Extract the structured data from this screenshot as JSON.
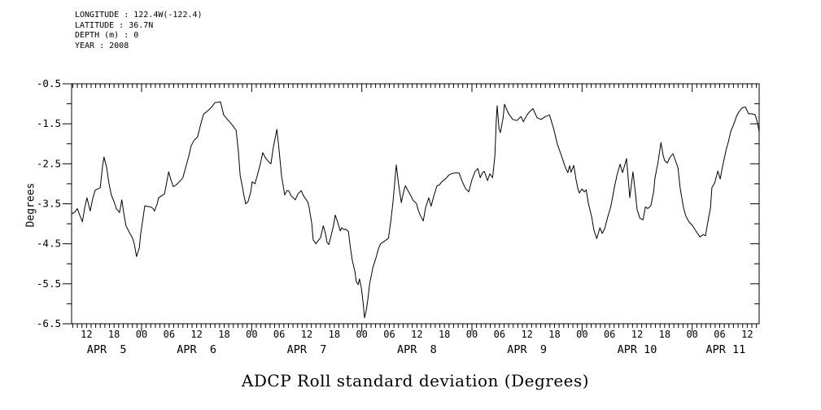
{
  "meta": {
    "longitude_line": "LONGITUDE : 122.4W(-122.4)",
    "latitude_line": "LATITUDE : 36.7N",
    "depth_line": "DEPTH (m) : 0",
    "year_line": "YEAR : 2008"
  },
  "chart_data": {
    "type": "line",
    "title": "ADCP Roll standard deviation (Degrees)",
    "ylabel": "Degrees",
    "x_unit": "hours since 2008-04-05 00:00",
    "xlim": [
      8.75,
      158.6
    ],
    "ylim": [
      -6.5,
      -0.5
    ],
    "grid": false,
    "line_color": "#000000",
    "background": "#ffffff",
    "y_ticks": [
      {
        "v": -0.5,
        "label": "-0.5"
      },
      {
        "v": -1.5,
        "label": "-1.5"
      },
      {
        "v": -2.5,
        "label": "-2.5"
      },
      {
        "v": -3.5,
        "label": "-3.5"
      },
      {
        "v": -4.5,
        "label": "-4.5"
      },
      {
        "v": -5.5,
        "label": "-5.5"
      },
      {
        "v": -6.5,
        "label": "-6.5"
      }
    ],
    "y_minor_ticks": [
      -1.0,
      -2.0,
      -3.0,
      -4.0,
      -5.0,
      -6.0
    ],
    "x_hour_tick_step": 1,
    "x_midnight_ticks": [
      24,
      48,
      72,
      96,
      120,
      144
    ],
    "x_labels": [
      {
        "t": 12,
        "text": "12"
      },
      {
        "t": 18,
        "text": "18"
      },
      {
        "t": 24,
        "text": "00"
      },
      {
        "t": 30,
        "text": "06"
      },
      {
        "t": 36,
        "text": "12"
      },
      {
        "t": 42,
        "text": "18"
      },
      {
        "t": 48,
        "text": "00"
      },
      {
        "t": 54,
        "text": "06"
      },
      {
        "t": 60,
        "text": "12"
      },
      {
        "t": 66,
        "text": "18"
      },
      {
        "t": 72,
        "text": "00"
      },
      {
        "t": 78,
        "text": "06"
      },
      {
        "t": 84,
        "text": "12"
      },
      {
        "t": 90,
        "text": "18"
      },
      {
        "t": 96,
        "text": "00"
      },
      {
        "t": 102,
        "text": "06"
      },
      {
        "t": 108,
        "text": "12"
      },
      {
        "t": 114,
        "text": "18"
      },
      {
        "t": 120,
        "text": "00"
      },
      {
        "t": 126,
        "text": "06"
      },
      {
        "t": 132,
        "text": "12"
      },
      {
        "t": 138,
        "text": "18"
      },
      {
        "t": 144,
        "text": "00"
      },
      {
        "t": 150,
        "text": "06"
      },
      {
        "t": 156,
        "text": "12"
      }
    ],
    "day_labels": [
      {
        "t": 16.4,
        "text": "APR  5"
      },
      {
        "t": 36.0,
        "text": "APR  6"
      },
      {
        "t": 60.0,
        "text": "APR  7"
      },
      {
        "t": 84.0,
        "text": "APR  8"
      },
      {
        "t": 108.0,
        "text": "APR  9"
      },
      {
        "t": 132.0,
        "text": "APR 10"
      },
      {
        "t": 151.3,
        "text": "APR 11"
      }
    ],
    "series": [
      {
        "name": "ADCP Roll standard deviation",
        "points": [
          [
            8.7,
            -3.76
          ],
          [
            9.5,
            -3.7
          ],
          [
            10.0,
            -3.62
          ],
          [
            10.5,
            -3.78
          ],
          [
            11.1,
            -3.95
          ],
          [
            11.6,
            -3.6
          ],
          [
            12.1,
            -3.35
          ],
          [
            12.8,
            -3.68
          ],
          [
            13.4,
            -3.35
          ],
          [
            13.9,
            -3.16
          ],
          [
            14.4,
            -3.13
          ],
          [
            15.0,
            -3.1
          ],
          [
            15.5,
            -2.55
          ],
          [
            15.8,
            -2.33
          ],
          [
            16.4,
            -2.6
          ],
          [
            16.9,
            -3.0
          ],
          [
            17.4,
            -3.28
          ],
          [
            18.0,
            -3.45
          ],
          [
            18.5,
            -3.62
          ],
          [
            19.2,
            -3.72
          ],
          [
            19.7,
            -3.4
          ],
          [
            20.1,
            -3.72
          ],
          [
            20.6,
            -4.05
          ],
          [
            21.5,
            -4.25
          ],
          [
            22.0,
            -4.35
          ],
          [
            22.4,
            -4.5
          ],
          [
            22.9,
            -4.82
          ],
          [
            23.5,
            -4.6
          ],
          [
            23.8,
            -4.25
          ],
          [
            24.4,
            -3.8
          ],
          [
            24.7,
            -3.55
          ],
          [
            25.4,
            -3.57
          ],
          [
            26.0,
            -3.58
          ],
          [
            26.5,
            -3.62
          ],
          [
            26.8,
            -3.68
          ],
          [
            27.4,
            -3.5
          ],
          [
            27.7,
            -3.35
          ],
          [
            28.4,
            -3.3
          ],
          [
            29.0,
            -3.25
          ],
          [
            29.5,
            -2.95
          ],
          [
            29.9,
            -2.7
          ],
          [
            30.4,
            -2.9
          ],
          [
            30.9,
            -3.07
          ],
          [
            31.5,
            -3.03
          ],
          [
            31.8,
            -3.0
          ],
          [
            32.5,
            -2.92
          ],
          [
            33.0,
            -2.85
          ],
          [
            33.6,
            -2.6
          ],
          [
            34.3,
            -2.3
          ],
          [
            34.8,
            -2.05
          ],
          [
            35.4,
            -1.92
          ],
          [
            35.9,
            -1.86
          ],
          [
            36.2,
            -1.83
          ],
          [
            36.8,
            -1.55
          ],
          [
            37.5,
            -1.26
          ],
          [
            38.4,
            -1.18
          ],
          [
            39.3,
            -1.08
          ],
          [
            40.0,
            -0.97
          ],
          [
            40.7,
            -0.96
          ],
          [
            41.2,
            -0.95
          ],
          [
            41.9,
            -1.28
          ],
          [
            42.8,
            -1.4
          ],
          [
            43.7,
            -1.52
          ],
          [
            44.2,
            -1.6
          ],
          [
            44.6,
            -1.66
          ],
          [
            45.1,
            -2.2
          ],
          [
            45.5,
            -2.8
          ],
          [
            46.0,
            -3.1
          ],
          [
            46.3,
            -3.28
          ],
          [
            46.7,
            -3.5
          ],
          [
            47.2,
            -3.45
          ],
          [
            47.8,
            -3.2
          ],
          [
            48.1,
            -2.95
          ],
          [
            48.7,
            -3.0
          ],
          [
            49.2,
            -2.8
          ],
          [
            49.9,
            -2.5
          ],
          [
            50.4,
            -2.22
          ],
          [
            51.0,
            -2.35
          ],
          [
            51.7,
            -2.45
          ],
          [
            52.2,
            -2.5
          ],
          [
            52.7,
            -2.1
          ],
          [
            53.5,
            -1.64
          ],
          [
            54.0,
            -2.2
          ],
          [
            54.5,
            -2.8
          ],
          [
            55.2,
            -3.28
          ],
          [
            55.7,
            -3.17
          ],
          [
            56.1,
            -3.18
          ],
          [
            56.6,
            -3.3
          ],
          [
            57.5,
            -3.4
          ],
          [
            58.1,
            -3.25
          ],
          [
            58.8,
            -3.17
          ],
          [
            59.3,
            -3.3
          ],
          [
            59.7,
            -3.37
          ],
          [
            60.2,
            -3.45
          ],
          [
            60.5,
            -3.58
          ],
          [
            61.1,
            -4.0
          ],
          [
            61.4,
            -4.4
          ],
          [
            62.0,
            -4.5
          ],
          [
            62.5,
            -4.42
          ],
          [
            63.0,
            -4.35
          ],
          [
            63.6,
            -4.05
          ],
          [
            64.1,
            -4.25
          ],
          [
            64.4,
            -4.46
          ],
          [
            64.8,
            -4.52
          ],
          [
            65.3,
            -4.3
          ],
          [
            65.9,
            -4.0
          ],
          [
            66.2,
            -3.78
          ],
          [
            66.7,
            -3.95
          ],
          [
            67.3,
            -4.18
          ],
          [
            67.6,
            -4.1
          ],
          [
            68.2,
            -4.15
          ],
          [
            68.5,
            -4.13
          ],
          [
            69.1,
            -4.2
          ],
          [
            69.4,
            -4.5
          ],
          [
            69.9,
            -4.9
          ],
          [
            70.5,
            -5.2
          ],
          [
            70.8,
            -5.45
          ],
          [
            71.2,
            -5.52
          ],
          [
            71.5,
            -5.38
          ],
          [
            71.9,
            -5.6
          ],
          [
            72.3,
            -6.0
          ],
          [
            72.6,
            -6.35
          ],
          [
            73.0,
            -6.15
          ],
          [
            73.3,
            -5.9
          ],
          [
            73.7,
            -5.5
          ],
          [
            74.4,
            -5.1
          ],
          [
            75.1,
            -4.85
          ],
          [
            75.6,
            -4.63
          ],
          [
            76.1,
            -4.5
          ],
          [
            77.0,
            -4.43
          ],
          [
            77.8,
            -4.36
          ],
          [
            78.3,
            -3.95
          ],
          [
            78.8,
            -3.45
          ],
          [
            79.5,
            -2.53
          ],
          [
            80.0,
            -3.0
          ],
          [
            80.6,
            -3.47
          ],
          [
            81.1,
            -3.2
          ],
          [
            81.5,
            -3.05
          ],
          [
            82.2,
            -3.2
          ],
          [
            82.7,
            -3.3
          ],
          [
            83.2,
            -3.42
          ],
          [
            83.9,
            -3.49
          ],
          [
            84.3,
            -3.66
          ],
          [
            84.8,
            -3.8
          ],
          [
            85.4,
            -3.93
          ],
          [
            85.9,
            -3.6
          ],
          [
            86.6,
            -3.35
          ],
          [
            87.1,
            -3.56
          ],
          [
            87.7,
            -3.3
          ],
          [
            88.4,
            -3.05
          ],
          [
            88.9,
            -3.03
          ],
          [
            89.4,
            -2.95
          ],
          [
            90.2,
            -2.88
          ],
          [
            91.0,
            -2.78
          ],
          [
            91.7,
            -2.74
          ],
          [
            92.5,
            -2.73
          ],
          [
            93.2,
            -2.73
          ],
          [
            93.9,
            -2.95
          ],
          [
            94.6,
            -3.12
          ],
          [
            95.3,
            -3.2
          ],
          [
            96.0,
            -2.9
          ],
          [
            96.7,
            -2.69
          ],
          [
            97.3,
            -2.62
          ],
          [
            97.8,
            -2.85
          ],
          [
            98.3,
            -2.72
          ],
          [
            98.7,
            -2.69
          ],
          [
            99.4,
            -2.92
          ],
          [
            99.9,
            -2.75
          ],
          [
            100.5,
            -2.85
          ],
          [
            101.0,
            -2.3
          ],
          [
            101.3,
            -1.42
          ],
          [
            101.5,
            -1.05
          ],
          [
            101.9,
            -1.63
          ],
          [
            102.2,
            -1.72
          ],
          [
            102.8,
            -1.35
          ],
          [
            103.1,
            -1.01
          ],
          [
            103.6,
            -1.15
          ],
          [
            104.0,
            -1.25
          ],
          [
            104.9,
            -1.39
          ],
          [
            105.8,
            -1.42
          ],
          [
            106.7,
            -1.32
          ],
          [
            107.2,
            -1.45
          ],
          [
            107.9,
            -1.3
          ],
          [
            108.4,
            -1.22
          ],
          [
            109.3,
            -1.12
          ],
          [
            110.2,
            -1.35
          ],
          [
            111.1,
            -1.39
          ],
          [
            112.0,
            -1.32
          ],
          [
            112.9,
            -1.28
          ],
          [
            113.8,
            -1.62
          ],
          [
            114.6,
            -2.0
          ],
          [
            115.5,
            -2.3
          ],
          [
            116.4,
            -2.6
          ],
          [
            116.9,
            -2.72
          ],
          [
            117.3,
            -2.55
          ],
          [
            117.6,
            -2.71
          ],
          [
            118.2,
            -2.54
          ],
          [
            118.7,
            -2.9
          ],
          [
            119.1,
            -3.13
          ],
          [
            119.4,
            -3.23
          ],
          [
            120.0,
            -3.13
          ],
          [
            120.5,
            -3.2
          ],
          [
            120.9,
            -3.15
          ],
          [
            121.4,
            -3.5
          ],
          [
            122.1,
            -3.83
          ],
          [
            122.6,
            -4.17
          ],
          [
            123.2,
            -4.37
          ],
          [
            123.9,
            -4.1
          ],
          [
            124.4,
            -4.24
          ],
          [
            124.9,
            -4.13
          ],
          [
            125.6,
            -3.83
          ],
          [
            126.2,
            -3.6
          ],
          [
            126.5,
            -3.43
          ],
          [
            127.1,
            -3.06
          ],
          [
            127.6,
            -2.79
          ],
          [
            128.3,
            -2.51
          ],
          [
            128.8,
            -2.72
          ],
          [
            129.4,
            -2.5
          ],
          [
            129.7,
            -2.37
          ],
          [
            130.4,
            -3.35
          ],
          [
            131.1,
            -2.7
          ],
          [
            131.7,
            -3.3
          ],
          [
            132.0,
            -3.65
          ],
          [
            132.6,
            -3.86
          ],
          [
            133.3,
            -3.9
          ],
          [
            133.8,
            -3.58
          ],
          [
            134.3,
            -3.62
          ],
          [
            135.0,
            -3.55
          ],
          [
            135.6,
            -3.2
          ],
          [
            135.9,
            -2.85
          ],
          [
            136.5,
            -2.5
          ],
          [
            137.2,
            -1.97
          ],
          [
            137.7,
            -2.3
          ],
          [
            138.0,
            -2.42
          ],
          [
            138.6,
            -2.48
          ],
          [
            139.1,
            -2.35
          ],
          [
            139.8,
            -2.25
          ],
          [
            140.3,
            -2.4
          ],
          [
            140.9,
            -2.6
          ],
          [
            141.4,
            -3.12
          ],
          [
            142.1,
            -3.6
          ],
          [
            142.6,
            -3.8
          ],
          [
            143.3,
            -3.95
          ],
          [
            144.1,
            -4.05
          ],
          [
            144.8,
            -4.18
          ],
          [
            145.7,
            -4.33
          ],
          [
            146.4,
            -4.27
          ],
          [
            146.9,
            -4.3
          ],
          [
            147.4,
            -3.97
          ],
          [
            148.0,
            -3.6
          ],
          [
            148.3,
            -3.1
          ],
          [
            148.9,
            -2.98
          ],
          [
            149.6,
            -2.68
          ],
          [
            150.1,
            -2.88
          ],
          [
            150.6,
            -2.58
          ],
          [
            151.4,
            -2.15
          ],
          [
            151.9,
            -1.95
          ],
          [
            152.4,
            -1.7
          ],
          [
            153.1,
            -1.5
          ],
          [
            153.7,
            -1.3
          ],
          [
            154.2,
            -1.2
          ],
          [
            154.9,
            -1.1
          ],
          [
            155.6,
            -1.08
          ],
          [
            156.3,
            -1.25
          ],
          [
            157.0,
            -1.25
          ],
          [
            157.7,
            -1.27
          ],
          [
            158.2,
            -1.45
          ],
          [
            158.6,
            -1.7
          ]
        ]
      }
    ]
  }
}
